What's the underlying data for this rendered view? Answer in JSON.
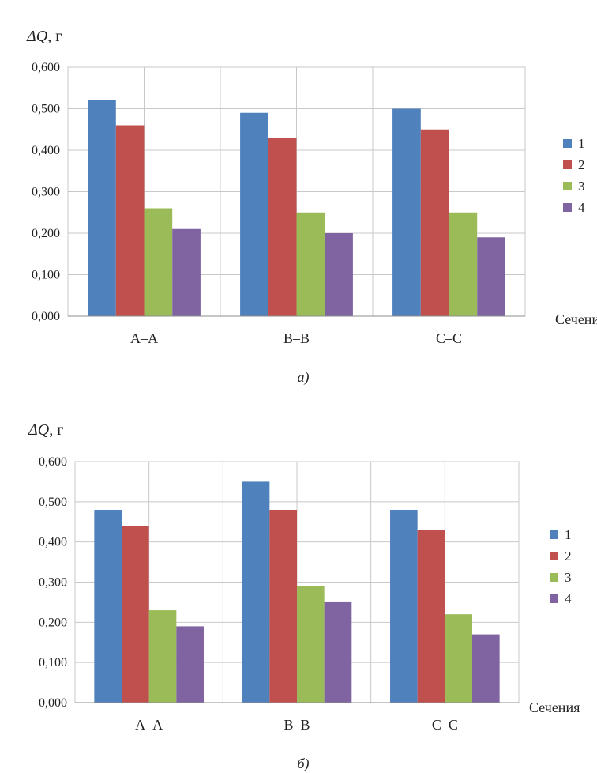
{
  "chart_data": [
    {
      "type": "bar",
      "ylabel_prefix": "ΔQ",
      "ylabel_unit": ", г",
      "xlabel": "Сечения",
      "caption": "а)",
      "categories": [
        "А–А",
        "В–В",
        "С–С"
      ],
      "ylim": [
        0,
        0.6
      ],
      "yticks": [
        "0,000",
        "0,100",
        "0,200",
        "0,300",
        "0,400",
        "0,500",
        "0,600"
      ],
      "grid": true,
      "legend_position": "right",
      "series": [
        {
          "name": "1",
          "color": "#4f81bd",
          "values": [
            0.52,
            0.49,
            0.5
          ]
        },
        {
          "name": "2",
          "color": "#c0504d",
          "values": [
            0.46,
            0.43,
            0.45
          ]
        },
        {
          "name": "3",
          "color": "#9bbb59",
          "values": [
            0.26,
            0.25,
            0.25
          ]
        },
        {
          "name": "4",
          "color": "#8064a2",
          "values": [
            0.21,
            0.2,
            0.19
          ]
        }
      ]
    },
    {
      "type": "bar",
      "ylabel_prefix": "ΔQ",
      "ylabel_unit": ", г",
      "xlabel": "Сечения",
      "caption": "б)",
      "categories": [
        "А–А",
        "В–В",
        "С–С"
      ],
      "ylim": [
        0,
        0.6
      ],
      "yticks": [
        "0,000",
        "0,100",
        "0,200",
        "0,300",
        "0,400",
        "0,500",
        "0,600"
      ],
      "grid": true,
      "legend_position": "right",
      "series": [
        {
          "name": "1",
          "color": "#4f81bd",
          "values": [
            0.48,
            0.55,
            0.48
          ]
        },
        {
          "name": "2",
          "color": "#c0504d",
          "values": [
            0.44,
            0.48,
            0.43
          ]
        },
        {
          "name": "3",
          "color": "#9bbb59",
          "values": [
            0.23,
            0.29,
            0.22
          ]
        },
        {
          "name": "4",
          "color": "#8064a2",
          "values": [
            0.19,
            0.25,
            0.17
          ]
        }
      ]
    }
  ]
}
